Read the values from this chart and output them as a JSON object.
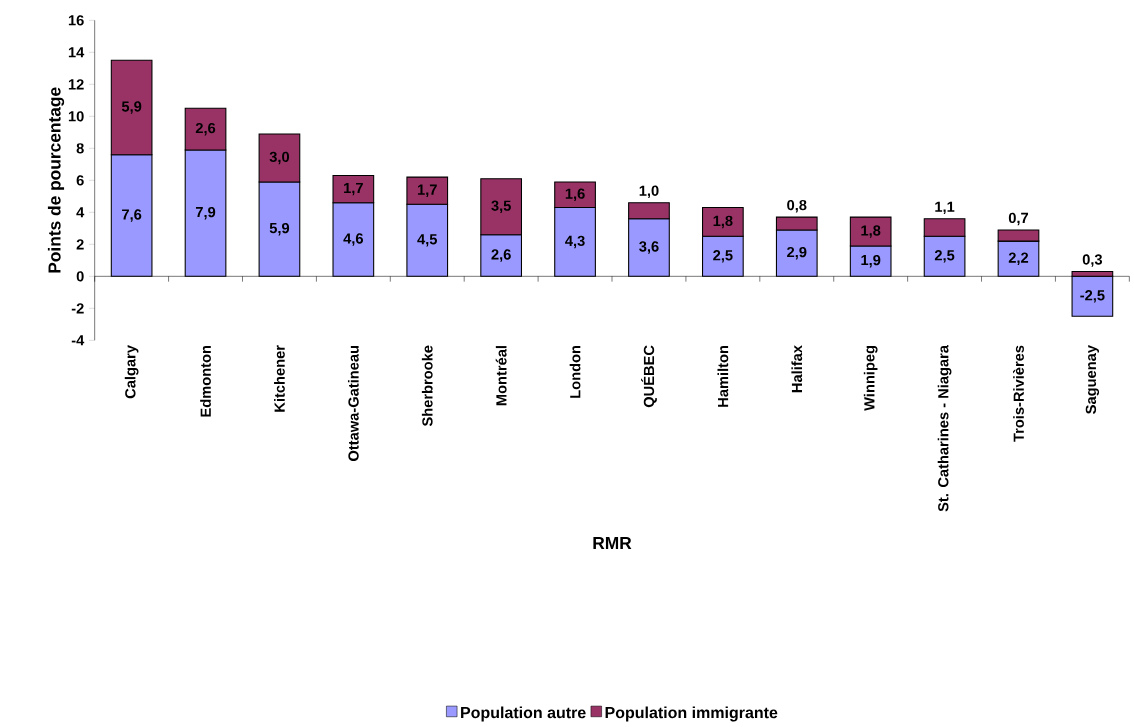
{
  "chart_data": {
    "type": "bar",
    "stacked": true,
    "xlabel": "RMR",
    "ylabel": "Points de pourcentage",
    "categories": [
      "Calgary",
      "Edmonton",
      "Kitchener",
      "Ottawa-Gatineau",
      "Sherbrooke",
      "Montréal",
      "London",
      "QUÉBEC",
      "Hamilton",
      "Halifax",
      "Winnipeg",
      "St. Catharines - Niagara",
      "Trois-Rivières",
      "Saguenay"
    ],
    "series": [
      {
        "name": "Population autre",
        "color": "#9999ff",
        "values": [
          7.6,
          7.9,
          5.9,
          4.6,
          4.5,
          2.6,
          4.3,
          3.6,
          2.5,
          2.9,
          1.9,
          2.5,
          2.2,
          -2.5
        ],
        "value_labels": [
          "7,6",
          "7,9",
          "5,9",
          "4,6",
          "4,5",
          "2,6",
          "4,3",
          "3,6",
          "2,5",
          "2,9",
          "1,9",
          "2,5",
          "2,2",
          "-2,5"
        ]
      },
      {
        "name": "Population immigrante",
        "color": "#993366",
        "values": [
          5.9,
          2.6,
          3.0,
          1.7,
          1.7,
          3.5,
          1.6,
          1.0,
          1.8,
          0.8,
          1.8,
          1.1,
          0.7,
          0.3
        ],
        "value_labels": [
          "5,9",
          "2,6",
          "3,0",
          "1,7",
          "1,7",
          "3,5",
          "1,6",
          "1,0",
          "1,8",
          "0,8",
          "1,8",
          "1,1",
          "0,7",
          "0,3"
        ]
      }
    ],
    "ylim": [
      -4,
      16
    ],
    "yticks": [
      -4,
      -2,
      0,
      2,
      4,
      6,
      8,
      10,
      12,
      14,
      16
    ],
    "legend": "bottom"
  }
}
